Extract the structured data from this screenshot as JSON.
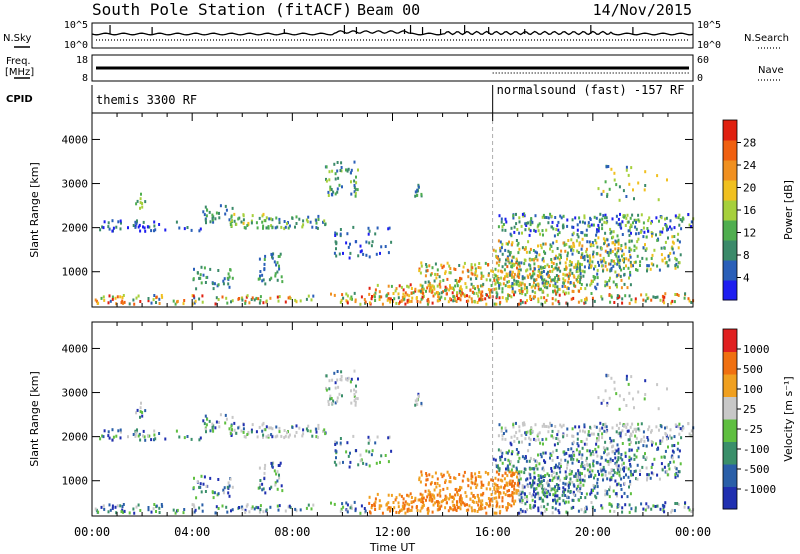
{
  "header": {
    "station": "South Pole Station (fitACF)",
    "beam": "Beam 00",
    "date": "14/Nov/2015"
  },
  "top_panels": {
    "nsky_label": "N.Sky",
    "nsky_ticks": [
      "10^5",
      "10^0"
    ],
    "nsearch_label": "N.Search",
    "nsearch_ticks": [
      "10^5",
      "10^0"
    ],
    "freq_label_1": "Freq.",
    "freq_label_2": "[MHz]",
    "freq_ticks": [
      "18",
      "8"
    ],
    "nave_label": "Nave",
    "nave_ticks": [
      "60",
      "0"
    ],
    "cpid_label": "CPID",
    "cpid_modes": [
      "themis 3300 RF",
      "normalsound (fast) -157 RF"
    ]
  },
  "chart_data": [
    {
      "type": "heatmap",
      "name": "power",
      "ylabel": "Slant Range [km]",
      "xlabel": "Time UT",
      "x_ticks": [
        "00:00",
        "04:00",
        "08:00",
        "12:00",
        "16:00",
        "20:00",
        "00:00"
      ],
      "y_ticks": [
        1000,
        2000,
        3000,
        4000
      ],
      "ylim": [
        200,
        4600
      ],
      "xlim_hours": [
        0,
        24
      ],
      "colorbar": {
        "label": "Power [dB]",
        "ticks": [
          "4",
          "8",
          "12",
          "16",
          "20",
          "24",
          "28"
        ],
        "colors": [
          "#1e1ef0",
          "#2a5fb8",
          "#3b8a6a",
          "#4fae4f",
          "#a6d03c",
          "#f0c020",
          "#f09020",
          "#f06010",
          "#e02010"
        ]
      }
    },
    {
      "type": "heatmap",
      "name": "velocity",
      "ylabel": "Slant Range [km]",
      "xlabel": "Time UT",
      "x_ticks": [
        "00:00",
        "04:00",
        "08:00",
        "12:00",
        "16:00",
        "20:00",
        "00:00"
      ],
      "y_ticks": [
        1000,
        2000,
        3000,
        4000
      ],
      "ylim": [
        200,
        4600
      ],
      "xlim_hours": [
        0,
        24
      ],
      "colorbar": {
        "label": "Velocity [m s⁻¹]",
        "ticks": [
          "1000",
          "500",
          "100",
          "25",
          "-25",
          "-100",
          "-500",
          "-1000"
        ],
        "colors": [
          "#2030b0",
          "#2a5fa8",
          "#3a8f6a",
          "#5fbf40",
          "#c8c8c8",
          "#f0a020",
          "#f07010",
          "#e02020"
        ]
      }
    }
  ],
  "axes": {
    "xlabel": "Time UT"
  }
}
